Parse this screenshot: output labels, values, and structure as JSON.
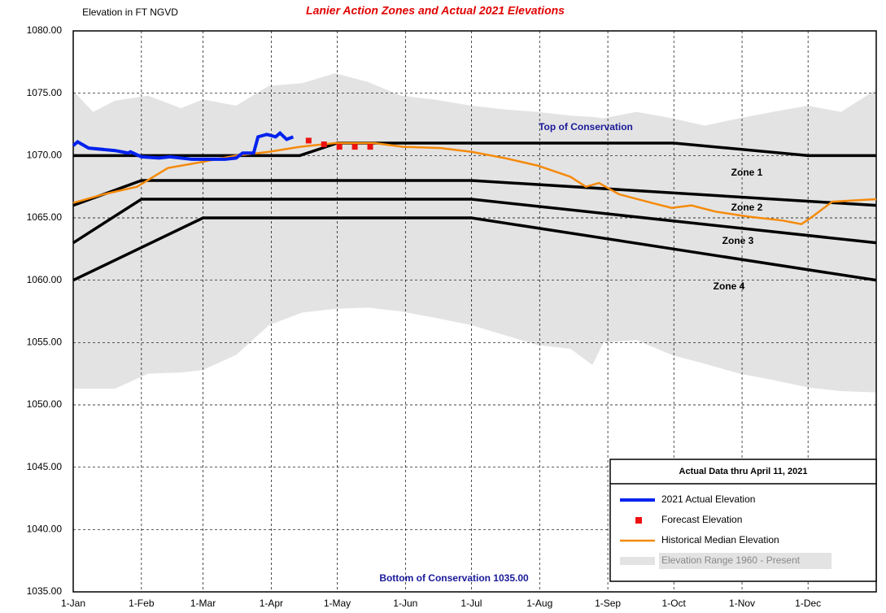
{
  "chart_data": {
    "type": "line",
    "title": "Lanier Action Zones and Actual 2021 Elevations",
    "y_label": "Elevation in FT NGVD",
    "xlim": [
      1,
      366
    ],
    "ylim": [
      1035,
      1080
    ],
    "xticks": [
      {
        "value": 1,
        "label": "1-Jan"
      },
      {
        "value": 32,
        "label": "1-Feb"
      },
      {
        "value": 60,
        "label": "1-Mar"
      },
      {
        "value": 91,
        "label": "1-Apr"
      },
      {
        "value": 121,
        "label": "1-May"
      },
      {
        "value": 152,
        "label": "1-Jun"
      },
      {
        "value": 182,
        "label": "1-Jul"
      },
      {
        "value": 213,
        "label": "1-Aug"
      },
      {
        "value": 244,
        "label": "1-Sep"
      },
      {
        "value": 274,
        "label": "1-Oct"
      },
      {
        "value": 305,
        "label": "1-Nov"
      },
      {
        "value": 335,
        "label": "1-Dec"
      }
    ],
    "yticks": [
      {
        "value": 1035,
        "label": "1035.00"
      },
      {
        "value": 1040,
        "label": "1040.00"
      },
      {
        "value": 1045,
        "label": "1045.00"
      },
      {
        "value": 1050,
        "label": "1050.00"
      },
      {
        "value": 1055,
        "label": "1055.00"
      },
      {
        "value": 1060,
        "label": "1060.00"
      },
      {
        "value": 1065,
        "label": "1065.00"
      },
      {
        "value": 1070,
        "label": "1070.00"
      },
      {
        "value": 1075,
        "label": "1075.00"
      },
      {
        "value": 1080,
        "label": "1080.00"
      }
    ],
    "grid": true,
    "legend_title": "Actual Data thru April 11, 2021",
    "legend_position": "lower-right",
    "annotations": [
      "Top of Conservation",
      "Zone 1",
      "Zone 2",
      "Zone 3",
      "Zone 4",
      "Bottom of Conservation 1035.00"
    ],
    "zone_lines": [
      {
        "x": [
          1,
          104,
          121,
          274,
          335,
          366
        ],
        "values": [
          1070,
          1070,
          1071,
          1071,
          1070,
          1070
        ]
      },
      {
        "x": [
          1,
          32,
          182,
          366
        ],
        "values": [
          1066,
          1068,
          1068,
          1066
        ]
      },
      {
        "x": [
          1,
          32,
          182,
          366
        ],
        "values": [
          1063,
          1066.5,
          1066.5,
          1063
        ]
      },
      {
        "x": [
          1,
          60,
          182,
          366
        ],
        "values": [
          1060,
          1065,
          1065,
          1060
        ]
      }
    ],
    "series": [
      {
        "name": "2021 Actual Elevation",
        "color": "#0022ee",
        "style": "line",
        "x": [
          1,
          3,
          8,
          20,
          26,
          27,
          32,
          40,
          45,
          55,
          70,
          75,
          78,
          83,
          85,
          89,
          93,
          95,
          98,
          101
        ],
        "values": [
          1070.8,
          1071.1,
          1070.6,
          1070.4,
          1070.2,
          1070.3,
          1069.9,
          1069.8,
          1069.9,
          1069.7,
          1069.7,
          1069.8,
          1070.2,
          1070.2,
          1071.5,
          1071.7,
          1071.5,
          1071.8,
          1071.3,
          1071.5
        ]
      },
      {
        "name": "Forecast Elevation",
        "color": "#ee1111",
        "style": "marker",
        "x": [
          108,
          115,
          122,
          129,
          136
        ],
        "values": [
          1071.2,
          1070.9,
          1070.7,
          1070.7,
          1070.7
        ]
      },
      {
        "name": "Historical Median Elevation",
        "color": "#f58a0a",
        "style": "line",
        "x": [
          1,
          15,
          30,
          44,
          60,
          75,
          90,
          104,
          120,
          138,
          151,
          168,
          182,
          197,
          212,
          227,
          234,
          240,
          249,
          264,
          273,
          282,
          293,
          308,
          323,
          332,
          337,
          346,
          356,
          366
        ],
        "values": [
          1066.2,
          1066.9,
          1067.5,
          1069.0,
          1069.5,
          1070.0,
          1070.3,
          1070.7,
          1071.0,
          1071.0,
          1070.7,
          1070.6,
          1070.3,
          1069.8,
          1069.2,
          1068.3,
          1067.5,
          1067.8,
          1066.9,
          1066.2,
          1065.8,
          1066.0,
          1065.5,
          1065.1,
          1064.8,
          1064.5,
          1065.1,
          1066.3,
          1066.4,
          1066.5
        ]
      },
      {
        "name": "Elevation Range 1960 - Present",
        "color": "#e3e3e3",
        "style": "band",
        "x": [
          1,
          10,
          20,
          35,
          50,
          60,
          75,
          90,
          105,
          120,
          135,
          150,
          165,
          182,
          197,
          212,
          227,
          237,
          242,
          257,
          273,
          288,
          304,
          319,
          335,
          350,
          366
        ],
        "high": [
          1075.2,
          1073.5,
          1074.4,
          1074.8,
          1073.8,
          1074.5,
          1074.0,
          1075.6,
          1075.8,
          1076.6,
          1075.9,
          1074.8,
          1074.5,
          1074.0,
          1073.7,
          1073.5,
          1073.2,
          1073.1,
          1073.0,
          1073.5,
          1073.0,
          1072.4,
          1073.0,
          1073.5,
          1074.0,
          1073.5,
          1075.3
        ],
        "low": [
          1051.3,
          1051.3,
          1051.3,
          1052.5,
          1052.6,
          1052.8,
          1054.0,
          1056.4,
          1057.4,
          1057.7,
          1057.8,
          1057.5,
          1057.0,
          1056.4,
          1055.6,
          1054.8,
          1054.5,
          1053.2,
          1055.0,
          1055.2,
          1054.0,
          1053.3,
          1052.5,
          1052.0,
          1051.4,
          1051.1,
          1051.0
        ]
      }
    ]
  }
}
